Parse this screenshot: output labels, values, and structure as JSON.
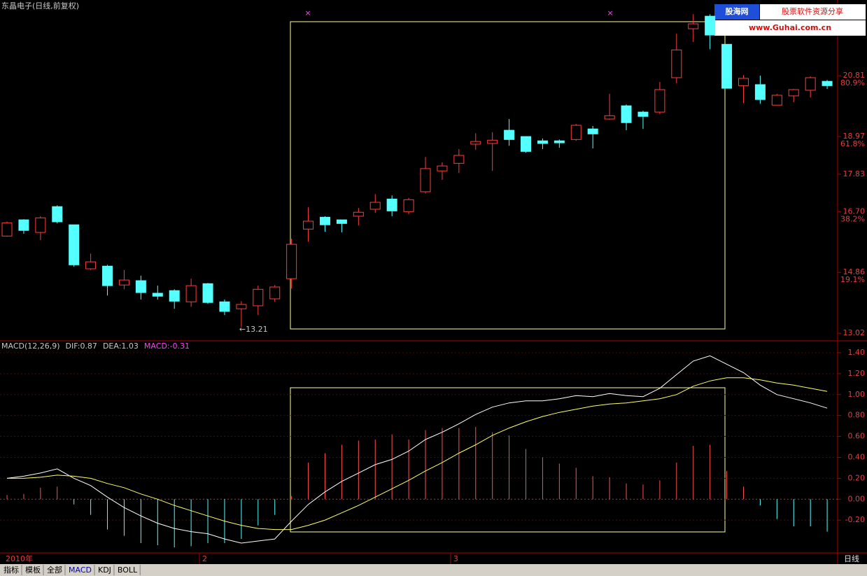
{
  "header": {
    "title": "东晶电子(日线,前复权)"
  },
  "watermark": {
    "name": "股海网",
    "slogan": "股票软件资源分享",
    "url": "www.Guhai.com.cn"
  },
  "chart_data": [
    {
      "type": "candlestick",
      "categories": [
        "2010年",
        null,
        null,
        null,
        null,
        null,
        null,
        null,
        null,
        null,
        null,
        null,
        "2",
        null,
        null,
        null,
        null,
        null,
        null,
        null,
        null,
        null,
        null,
        null,
        null,
        null,
        null,
        "3",
        null,
        null,
        null,
        null,
        null,
        null,
        null,
        null,
        null,
        null,
        null,
        null,
        null,
        null,
        null,
        null,
        null,
        null,
        null,
        null,
        null,
        null
      ],
      "open": [
        15.96,
        16.45,
        16.07,
        16.85,
        16.3,
        14.97,
        15.05,
        14.48,
        14.61,
        14.23,
        14.31,
        13.97,
        14.52,
        13.97,
        13.76,
        13.85,
        14.06,
        14.67,
        16.17,
        16.53,
        16.45,
        16.56,
        16.77,
        17.08,
        16.7,
        17.3,
        17.93,
        18.16,
        18.74,
        18.76,
        19.16,
        18.97,
        18.84,
        18.84,
        18.88,
        19.2,
        19.5,
        19.9,
        19.71,
        19.71,
        20.75,
        22.23,
        22.61,
        21.76,
        20.51,
        20.54,
        19.92,
        20.2,
        20.37,
        20.64
      ],
      "high": [
        16.4,
        16.47,
        16.56,
        16.89,
        16.3,
        15.43,
        15.09,
        14.93,
        14.76,
        14.46,
        14.35,
        14.67,
        14.54,
        14.04,
        13.99,
        14.46,
        14.48,
        15.88,
        16.83,
        16.56,
        16.45,
        16.81,
        17.23,
        17.19,
        17.11,
        18.35,
        18.19,
        18.59,
        19.07,
        19.1,
        19.5,
        18.97,
        18.91,
        18.88,
        19.35,
        19.29,
        20.26,
        19.94,
        19.75,
        20.62,
        22.08,
        22.67,
        22.67,
        21.76,
        20.83,
        20.81,
        20.26,
        20.41,
        20.79,
        20.68
      ],
      "low": [
        15.94,
        16.03,
        15.84,
        16.34,
        15.03,
        14.93,
        14.16,
        14.35,
        14.04,
        14.04,
        13.76,
        13.82,
        13.91,
        13.57,
        13.21,
        13.57,
        13.97,
        14.37,
        15.79,
        16.09,
        16.07,
        16.28,
        16.66,
        16.56,
        16.62,
        17.25,
        17.66,
        17.87,
        18.57,
        17.93,
        18.69,
        18.48,
        18.59,
        18.63,
        18.84,
        18.61,
        19.48,
        19.16,
        19.2,
        19.65,
        20.58,
        21.83,
        21.61,
        20.43,
        19.98,
        19.96,
        19.92,
        20.01,
        20.15,
        20.41
      ],
      "close": [
        16.36,
        16.13,
        16.51,
        16.39,
        15.09,
        15.18,
        14.46,
        14.63,
        14.25,
        14.14,
        13.99,
        14.46,
        13.95,
        13.68,
        13.89,
        14.35,
        14.42,
        15.71,
        16.41,
        16.3,
        16.34,
        16.68,
        16.98,
        16.72,
        17.06,
        18.0,
        18.08,
        18.4,
        18.82,
        18.86,
        18.88,
        18.52,
        18.76,
        18.78,
        19.31,
        19.05,
        19.6,
        19.39,
        19.58,
        20.39,
        21.59,
        22.38,
        22.04,
        20.43,
        20.73,
        20.09,
        20.22,
        20.39,
        20.75,
        20.51
      ],
      "up_color": "#ff3c3c",
      "down_color": "#54ffff",
      "ylim": [
        12.79,
        23.1
      ],
      "yticks": [
        13.02,
        14.86,
        {
          "value": 16.7,
          "label": "16.70"
        },
        17.83,
        18.97,
        20.81
      ],
      "fib_labels": [
        {
          "value": 14.86,
          "label": "19.1%"
        },
        {
          "value": 16.7,
          "label": "38.2%"
        },
        {
          "value": 18.97,
          "label": "61.8%"
        },
        {
          "value": 20.81,
          "label": "80.9%"
        }
      ],
      "annotations": [
        "←13.21"
      ]
    },
    {
      "type": "macd",
      "title": "MACD(12,26,9)",
      "series": [
        {
          "name": "DIF:0.87",
          "color": "#ffffff",
          "values": [
            0.2,
            0.22,
            0.25,
            0.29,
            0.2,
            0.13,
            0.02,
            -0.08,
            -0.16,
            -0.23,
            -0.28,
            -0.31,
            -0.33,
            -0.38,
            -0.42,
            -0.4,
            -0.38,
            -0.21,
            -0.05,
            0.07,
            0.17,
            0.25,
            0.33,
            0.38,
            0.46,
            0.57,
            0.64,
            0.72,
            0.81,
            0.88,
            0.92,
            0.94,
            0.94,
            0.96,
            0.99,
            0.98,
            1.01,
            0.99,
            0.98,
            1.06,
            1.19,
            1.32,
            1.37,
            1.29,
            1.21,
            1.09,
            1.0,
            0.96,
            0.92,
            0.87
          ]
        },
        {
          "name": "DEA:1.03",
          "color": "#ffff66",
          "values": [
            0.2,
            0.2,
            0.21,
            0.23,
            0.22,
            0.2,
            0.15,
            0.11,
            0.05,
            0.0,
            -0.06,
            -0.11,
            -0.16,
            -0.21,
            -0.25,
            -0.28,
            -0.29,
            -0.29,
            -0.25,
            -0.2,
            -0.13,
            -0.06,
            0.02,
            0.1,
            0.18,
            0.27,
            0.35,
            0.44,
            0.52,
            0.61,
            0.68,
            0.74,
            0.79,
            0.83,
            0.86,
            0.89,
            0.91,
            0.92,
            0.94,
            0.96,
            1.0,
            1.08,
            1.13,
            1.16,
            1.16,
            1.14,
            1.11,
            1.09,
            1.06,
            1.03
          ]
        },
        {
          "name": "MACD:-0.31",
          "type": "bar",
          "color": "#ff5050",
          "negative_color": "#54ffff",
          "legend_color": "#ff40ff",
          "values": [
            0.04,
            0.05,
            0.11,
            0.12,
            -0.05,
            -0.15,
            -0.29,
            -0.35,
            -0.42,
            -0.44,
            -0.46,
            -0.45,
            -0.42,
            -0.42,
            -0.38,
            -0.25,
            -0.15,
            0.03,
            0.35,
            0.44,
            0.52,
            0.56,
            0.57,
            0.62,
            0.57,
            0.66,
            0.68,
            0.68,
            0.69,
            0.64,
            0.61,
            0.48,
            0.4,
            0.34,
            0.3,
            0.22,
            0.21,
            0.15,
            0.14,
            0.18,
            0.35,
            0.51,
            0.52,
            0.27,
            0.12,
            -0.06,
            -0.19,
            -0.26,
            -0.26,
            -0.31
          ]
        }
      ],
      "ylim": [
        -0.5,
        1.5
      ],
      "yticks": [
        {
          "value": -0.2,
          "label": "-0.20"
        },
        {
          "value": 0,
          "label": "0.00"
        },
        {
          "value": 0.2,
          "label": "0.20"
        },
        {
          "value": 0.4,
          "label": "0.40"
        },
        {
          "value": 0.6,
          "label": "0.60"
        },
        {
          "value": 0.8,
          "label": "0.80"
        },
        {
          "value": 1,
          "label": "1.00"
        },
        {
          "value": 1.2,
          "label": "1.20"
        },
        {
          "value": 1.4,
          "label": "1.40"
        }
      ],
      "grid": true
    }
  ],
  "tabs": [
    "指标",
    "模板",
    "全部",
    "MACD",
    "KDJ",
    "BOLL"
  ],
  "period": "日线"
}
